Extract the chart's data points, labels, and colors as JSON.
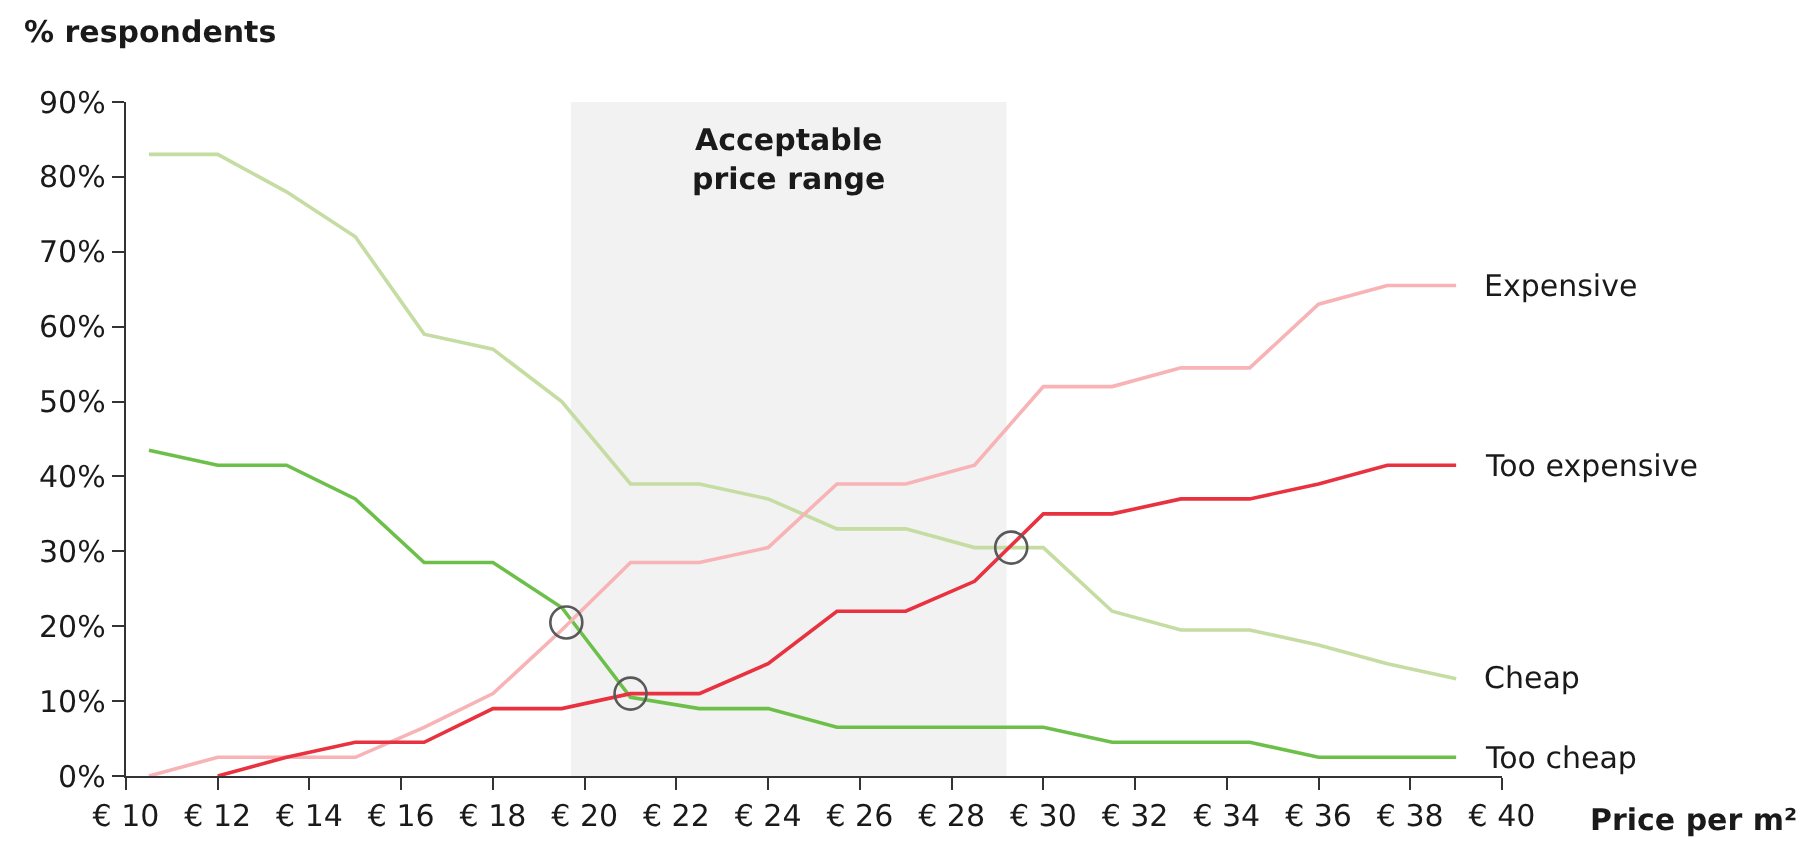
{
  "chart_data": {
    "type": "line",
    "ylabel": "% respondents",
    "xlabel": "Price per m²",
    "x": [
      10.5,
      12,
      13.5,
      15,
      16.5,
      18,
      19.5,
      21,
      22.5,
      24,
      25.5,
      27,
      28.5,
      30,
      31.5,
      33,
      34.5,
      36,
      37.5,
      39
    ],
    "series": [
      {
        "name": "Cheap",
        "color": "#c5dca2",
        "values": [
          83,
          83,
          78,
          72,
          59,
          57,
          50,
          39,
          39,
          37,
          33,
          33,
          30.5,
          30.5,
          22,
          19.5,
          19.5,
          17.5,
          15,
          13
        ]
      },
      {
        "name": "Too cheap",
        "color": "#6cc04a",
        "values": [
          43.5,
          41.5,
          41.5,
          37,
          28.5,
          28.5,
          22.5,
          10.5,
          9,
          9,
          6.5,
          6.5,
          6.5,
          6.5,
          4.5,
          4.5,
          4.5,
          2.5,
          2.5,
          2.5
        ]
      },
      {
        "name": "Expensive",
        "color": "#f8b3b7",
        "values": [
          0,
          2.5,
          2.5,
          2.5,
          6.5,
          11,
          19.5,
          28.5,
          28.5,
          30.5,
          39,
          39,
          41.5,
          52,
          52,
          54.5,
          54.5,
          63,
          65.5,
          65.5
        ]
      },
      {
        "name": "Too expensive",
        "color": "#e8323f",
        "values": [
          null,
          0,
          2.5,
          4.5,
          4.5,
          9,
          9,
          11,
          11,
          15,
          22,
          22,
          26,
          35,
          35,
          37,
          37,
          39,
          41.5,
          41.5
        ]
      },
      {
        "type": "scatter",
        "marker": "circle",
        "color": "#595959",
        "x": [
          19.6,
          21,
          29.3
        ],
        "values": [
          20.5,
          11,
          30.5
        ]
      }
    ],
    "xlim": [
      10,
      40
    ],
    "ylim": [
      0,
      90
    ],
    "xticks": [
      {
        "value": 10,
        "label": "€ 10"
      },
      {
        "value": 12,
        "label": "€ 12"
      },
      {
        "value": 14,
        "label": "€ 14"
      },
      {
        "value": 16,
        "label": "€ 16"
      },
      {
        "value": 18,
        "label": "€ 18"
      },
      {
        "value": 20,
        "label": "€ 20"
      },
      {
        "value": 22,
        "label": "€ 22"
      },
      {
        "value": 24,
        "label": "€ 24"
      },
      {
        "value": 26,
        "label": "€ 26"
      },
      {
        "value": 28,
        "label": "€ 28"
      },
      {
        "value": 30,
        "label": "€ 30"
      },
      {
        "value": 32,
        "label": "€ 32"
      },
      {
        "value": 34,
        "label": "€ 34"
      },
      {
        "value": 36,
        "label": "€ 36"
      },
      {
        "value": 38,
        "label": "€ 38"
      },
      {
        "value": 40,
        "label": "€ 40"
      }
    ],
    "yticks": [
      {
        "value": 0,
        "label": "0%"
      },
      {
        "value": 10,
        "label": "10%"
      },
      {
        "value": 20,
        "label": "20%"
      },
      {
        "value": 30,
        "label": "30%"
      },
      {
        "value": 40,
        "label": "40%"
      },
      {
        "value": 50,
        "label": "50%"
      },
      {
        "value": 60,
        "label": "60%"
      },
      {
        "value": 70,
        "label": "70%"
      },
      {
        "value": 80,
        "label": "80%"
      },
      {
        "value": 90,
        "label": "90%"
      }
    ],
    "bands": [
      {
        "axis": "x",
        "from": 19.7,
        "to": 29.2,
        "label": "Acceptable price range",
        "color": "#f2f2f2"
      }
    ],
    "legend": false
  }
}
